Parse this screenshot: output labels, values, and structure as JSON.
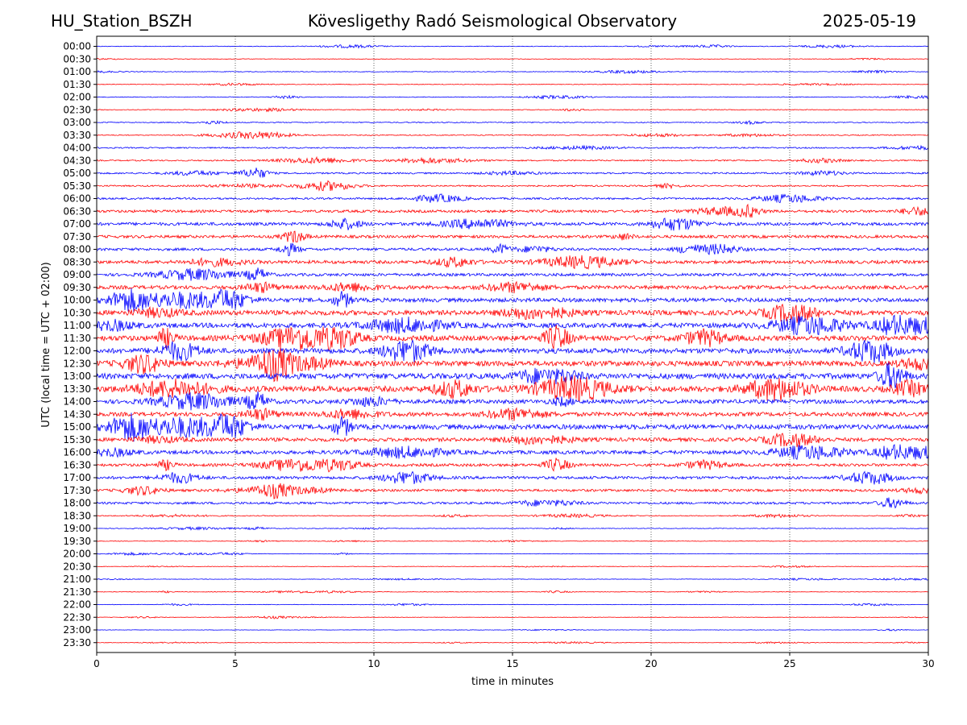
{
  "header": {
    "station": "HU_Station_BSZH",
    "observatory": "Kövesligethy Radó Seismological Observatory",
    "date": "2025-05-19"
  },
  "chart_data": {
    "type": "line",
    "title": "Kövesligethy Radó Seismological Observatory",
    "xlabel": "time in minutes",
    "ylabel": "UTC (local time = UTC + 02:00)",
    "xlim": [
      0,
      30
    ],
    "x_ticks": [
      0,
      5,
      10,
      15,
      20,
      25,
      30
    ],
    "grid": "vertical dotted at 5-minute intervals",
    "rows": [
      "00:00",
      "00:30",
      "01:00",
      "01:30",
      "02:00",
      "02:30",
      "03:00",
      "03:30",
      "04:00",
      "04:30",
      "05:00",
      "05:30",
      "06:00",
      "06:30",
      "07:00",
      "07:30",
      "08:00",
      "08:30",
      "09:00",
      "09:30",
      "10:00",
      "10:30",
      "11:00",
      "11:30",
      "12:00",
      "12:30",
      "13:00",
      "13:30",
      "14:00",
      "14:30",
      "15:00",
      "15:30",
      "16:00",
      "16:30",
      "17:00",
      "17:30",
      "18:00",
      "18:30",
      "19:00",
      "19:30",
      "20:00",
      "20:30",
      "21:00",
      "21:30",
      "22:00",
      "22:30",
      "23:00",
      "23:30"
    ],
    "amplitude": [
      0.08,
      0.07,
      0.08,
      0.08,
      0.09,
      0.09,
      0.12,
      0.12,
      0.16,
      0.16,
      0.2,
      0.18,
      0.23,
      0.32,
      0.38,
      0.35,
      0.33,
      0.4,
      0.35,
      0.45,
      0.5,
      0.6,
      0.6,
      0.65,
      0.62,
      0.65,
      0.7,
      0.7,
      0.5,
      0.5,
      0.6,
      0.45,
      0.45,
      0.35,
      0.35,
      0.3,
      0.28,
      0.1,
      0.08,
      0.07,
      0.06,
      0.06,
      0.06,
      0.06,
      0.06,
      0.05,
      0.05,
      0.05
    ],
    "colors": {
      "even_rows": "#0000ff",
      "odd_rows": "#ff0000",
      "grid": "#000000"
    }
  }
}
